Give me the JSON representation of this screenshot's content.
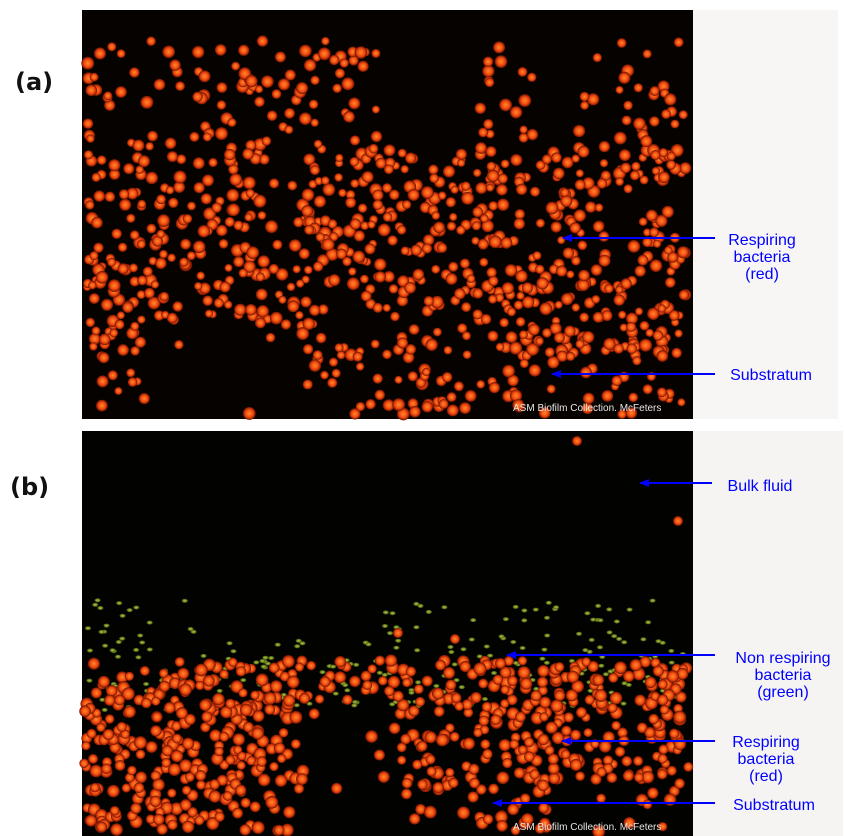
{
  "panels": [
    {
      "label": "(a)",
      "credit": "ASM Biofilm Collection. McFeters",
      "annotations": [
        {
          "lines": [
            "Respiring",
            "bacteria",
            "(red)"
          ]
        },
        {
          "lines": [
            "Substratum"
          ]
        }
      ]
    },
    {
      "label": "(b)",
      "credit": "ASM Biofilm Collection. McFeters",
      "annotations": [
        {
          "lines": [
            "Bulk fluid"
          ]
        },
        {
          "lines": [
            "Non respiring",
            "bacteria",
            "(green)"
          ]
        },
        {
          "lines": [
            "Respiring",
            "bacteria",
            "(red)"
          ]
        },
        {
          "lines": [
            "Substratum"
          ]
        }
      ]
    }
  ]
}
